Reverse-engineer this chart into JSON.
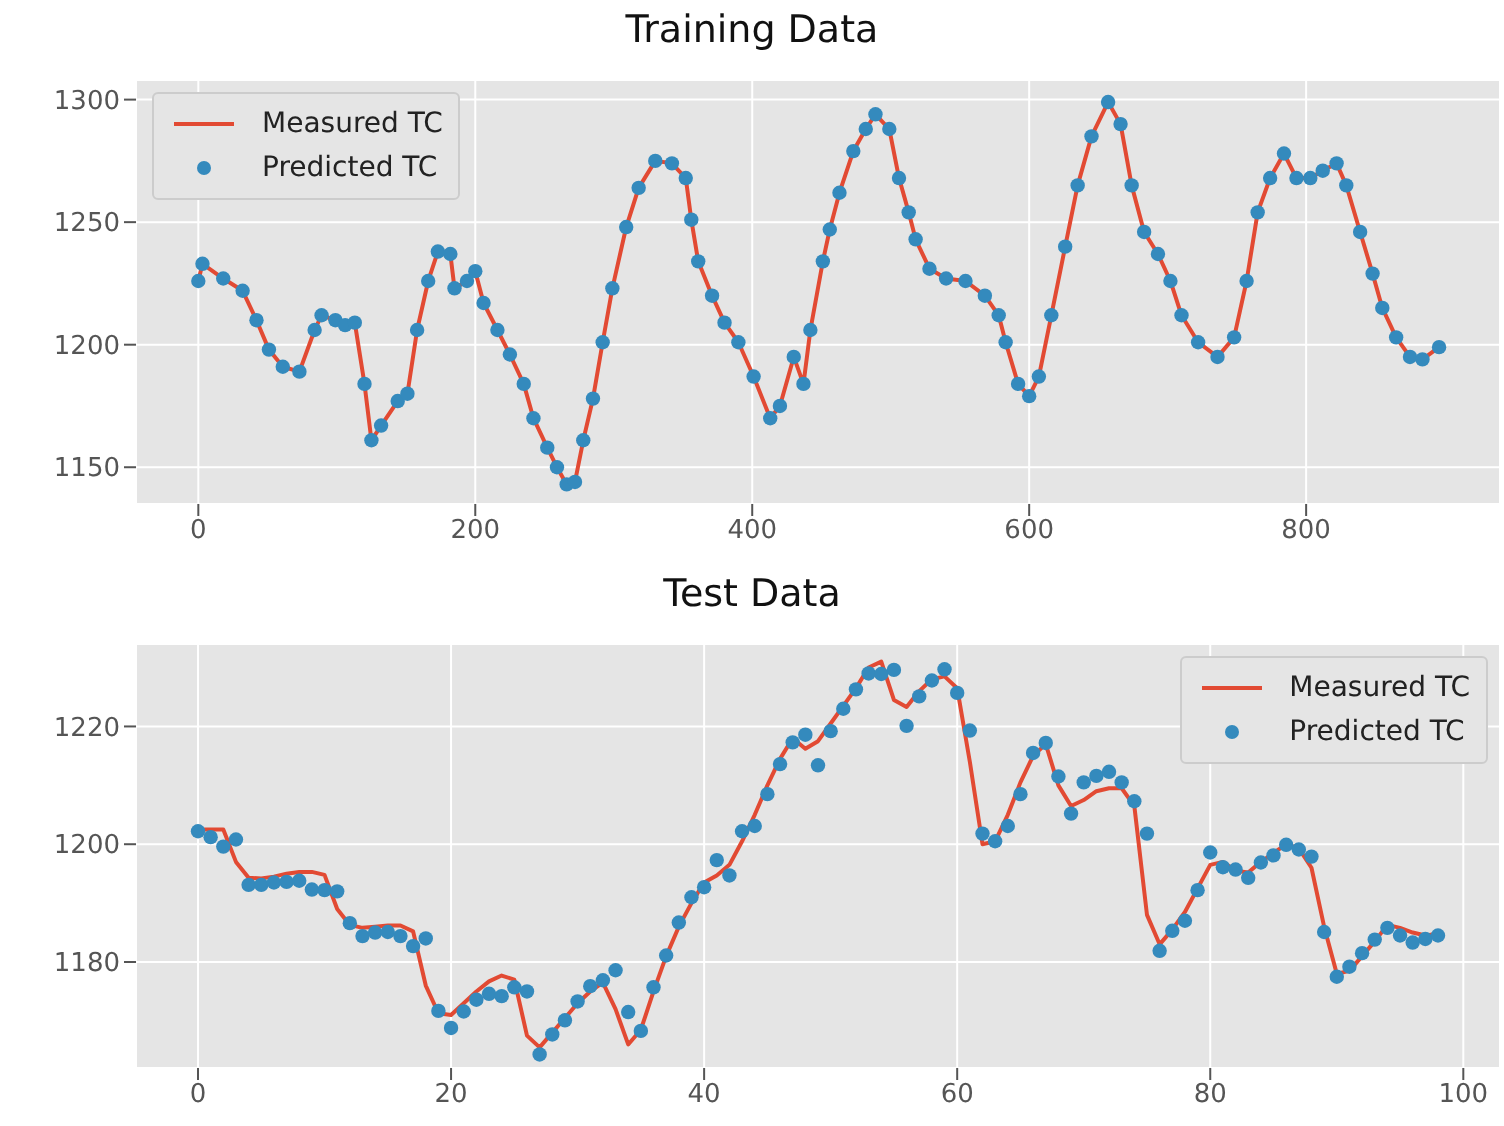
{
  "chart_data": [
    {
      "type": "line",
      "title": "Training Data",
      "xlim": [
        -45,
        940
      ],
      "xticks": [
        0,
        200,
        400,
        600,
        800
      ],
      "ylim": [
        1135,
        1308
      ],
      "yticks": [
        1150,
        1200,
        1250,
        1300
      ],
      "grid": true,
      "legend": "top left",
      "x": [
        0,
        3,
        18,
        32,
        42,
        51,
        61,
        73,
        84,
        89,
        99,
        106,
        113,
        120,
        125,
        132,
        144,
        151,
        158,
        166,
        173,
        182,
        185,
        194,
        200,
        206,
        216,
        225,
        235,
        242,
        252,
        259,
        266,
        272,
        278,
        285,
        292,
        299,
        309,
        318,
        330,
        342,
        352,
        356,
        361,
        371,
        380,
        390,
        401,
        413,
        420,
        430,
        437,
        442,
        451,
        456,
        463,
        473,
        482,
        489,
        499,
        506,
        513,
        518,
        528,
        540,
        554,
        568,
        578,
        583,
        592,
        600,
        607,
        616,
        626,
        635,
        645,
        657,
        666,
        674,
        683,
        693,
        702,
        710,
        722,
        736,
        748,
        757,
        765,
        774,
        784,
        793,
        803,
        812,
        822,
        829,
        839,
        848,
        855,
        865,
        875,
        884,
        896
      ],
      "series": [
        {
          "name": "Measured TC",
          "color": "#e24a33",
          "values": [
            1226,
            1233,
            1227,
            1222,
            1210,
            1198,
            1191,
            1189,
            1206,
            1212,
            1210,
            1208,
            1209,
            1184,
            1161,
            1167,
            1177,
            1180,
            1206,
            1226,
            1238,
            1237,
            1223,
            1226,
            1230,
            1217,
            1206,
            1196,
            1184,
            1170,
            1158,
            1150,
            1143,
            1144,
            1161,
            1178,
            1201,
            1223,
            1248,
            1264,
            1275,
            1274,
            1268,
            1251,
            1234,
            1220,
            1209,
            1201,
            1187,
            1170,
            1175,
            1195,
            1184,
            1206,
            1234,
            1247,
            1262,
            1279,
            1288,
            1294,
            1288,
            1268,
            1254,
            1243,
            1231,
            1227,
            1226,
            1220,
            1212,
            1201,
            1184,
            1179,
            1187,
            1212,
            1240,
            1265,
            1285,
            1299,
            1290,
            1265,
            1246,
            1237,
            1226,
            1212,
            1201,
            1195,
            1203,
            1226,
            1254,
            1268,
            1278,
            1268,
            1268,
            1271,
            1274,
            1265,
            1246,
            1229,
            1215,
            1203,
            1195,
            1194,
            1199
          ]
        },
        {
          "name": "Predicted TC",
          "type": "scatter",
          "marker": "circle",
          "color": "#348abd",
          "values": [
            1226,
            1233,
            1227,
            1222,
            1210,
            1198,
            1191,
            1189,
            1206,
            1212,
            1210,
            1208,
            1209,
            1184,
            1161,
            1167,
            1177,
            1180,
            1206,
            1226,
            1238,
            1237,
            1223,
            1226,
            1230,
            1217,
            1206,
            1196,
            1184,
            1170,
            1158,
            1150,
            1143,
            1144,
            1161,
            1178,
            1201,
            1223,
            1248,
            1264,
            1275,
            1274,
            1268,
            1251,
            1234,
            1220,
            1209,
            1201,
            1187,
            1170,
            1175,
            1195,
            1184,
            1206,
            1234,
            1247,
            1262,
            1279,
            1288,
            1294,
            1288,
            1268,
            1254,
            1243,
            1231,
            1227,
            1226,
            1220,
            1212,
            1201,
            1184,
            1179,
            1187,
            1212,
            1240,
            1265,
            1285,
            1299,
            1290,
            1265,
            1246,
            1237,
            1226,
            1212,
            1201,
            1195,
            1203,
            1226,
            1254,
            1268,
            1278,
            1268,
            1268,
            1271,
            1274,
            1265,
            1246,
            1229,
            1215,
            1203,
            1195,
            1194,
            1199
          ]
        }
      ]
    },
    {
      "type": "line",
      "title": "Test Data",
      "xlim": [
        -4.9,
        102.9
      ],
      "xticks": [
        0,
        20,
        40,
        60,
        80,
        100
      ],
      "ylim": [
        1162,
        1234
      ],
      "yticks": [
        1180,
        1200,
        1220
      ],
      "grid": true,
      "legend": "top right",
      "x": [
        0,
        1,
        2,
        3,
        4,
        5,
        6,
        7,
        8,
        9,
        10,
        11,
        12,
        13,
        14,
        15,
        16,
        17,
        18,
        19,
        20,
        21,
        22,
        23,
        24,
        25,
        26,
        27,
        28,
        29,
        30,
        31,
        32,
        33,
        34,
        35,
        36,
        37,
        38,
        39,
        40,
        41,
        42,
        43,
        44,
        45,
        46,
        47,
        48,
        49,
        50,
        51,
        52,
        53,
        54,
        55,
        56,
        57,
        58,
        59,
        60,
        61,
        62,
        63,
        64,
        65,
        66,
        67,
        68,
        69,
        70,
        71,
        72,
        73,
        74,
        75,
        76,
        77,
        78,
        79,
        80,
        81,
        82,
        83,
        84,
        85,
        86,
        87,
        88,
        89,
        90,
        91,
        92,
        93,
        94,
        95,
        96,
        97,
        98
      ],
      "series": [
        {
          "name": "Measured TC",
          "color": "#e24a33",
          "values": [
            1202.5,
            1202.5,
            1202.5,
            1197,
            1194.3,
            1194.2,
            1194.5,
            1195,
            1195.3,
            1195.3,
            1194.8,
            1189,
            1186.3,
            1185.8,
            1186,
            1186.2,
            1186.2,
            1185.2,
            1176,
            1171.3,
            1171,
            1173,
            1175,
            1176.7,
            1177.7,
            1177,
            1167.5,
            1165.5,
            1168,
            1170.5,
            1173,
            1175,
            1176.5,
            1172,
            1166,
            1168.5,
            1175,
            1181,
            1186,
            1190,
            1193.5,
            1194.7,
            1196.5,
            1200.5,
            1205,
            1210,
            1214.5,
            1218,
            1216.2,
            1217.5,
            1220.5,
            1223.5,
            1226.5,
            1230,
            1231,
            1224.5,
            1223.3,
            1226,
            1228,
            1228.5,
            1226.5,
            1214,
            1200,
            1200.5,
            1205,
            1210.5,
            1215,
            1217,
            1210,
            1206.5,
            1207.5,
            1209,
            1209.5,
            1209.5,
            1206.5,
            1188,
            1183,
            1185.5,
            1188.5,
            1192.5,
            1196.5,
            1197,
            1195.5,
            1195.2,
            1197,
            1198.5,
            1200,
            1199.3,
            1196,
            1186,
            1178,
            1178.5,
            1181,
            1183.5,
            1186.3,
            1185.8,
            1185,
            1184.5,
            1184.8
          ]
        },
        {
          "name": "Predicted TC",
          "type": "scatter",
          "marker": "circle",
          "color": "#348abd",
          "values": [
            1202.2,
            1201.2,
            1199.6,
            1200.8,
            1193.1,
            1193.1,
            1193.5,
            1193.6,
            1193.8,
            1192.3,
            1192.2,
            1192,
            1186.6,
            1184.4,
            1185,
            1185.1,
            1184.4,
            1182.7,
            1184,
            1171.7,
            1168.8,
            1171.6,
            1173.6,
            1174.6,
            1174.2,
            1175.7,
            1175,
            1164.3,
            1167.7,
            1170.1,
            1173.3,
            1175.9,
            1176.9,
            1178.6,
            1171.5,
            1168.3,
            1175.7,
            1181.1,
            1186.7,
            1191,
            1192.7,
            1197.3,
            1194.7,
            1202.2,
            1203.1,
            1208.5,
            1213.6,
            1217.3,
            1218.6,
            1213.4,
            1219.2,
            1223,
            1226.3,
            1229,
            1228.9,
            1229.6,
            1220.1,
            1225.1,
            1227.8,
            1229.7,
            1225.7,
            1219.3,
            1201.8,
            1200.5,
            1203.1,
            1208.5,
            1215.5,
            1217.2,
            1211.5,
            1205.2,
            1210.5,
            1211.6,
            1212.3,
            1210.5,
            1207.3,
            1201.8,
            1181.9,
            1185.3,
            1187,
            1192.2,
            1198.6,
            1196.1,
            1195.7,
            1194.3,
            1196.9,
            1198.1,
            1199.9,
            1199.1,
            1197.9,
            1185.1,
            1177.5,
            1179.2,
            1181.5,
            1183.8,
            1185.8,
            1184.5,
            1183.3,
            1183.9,
            1184.5
          ]
        }
      ]
    }
  ]
}
